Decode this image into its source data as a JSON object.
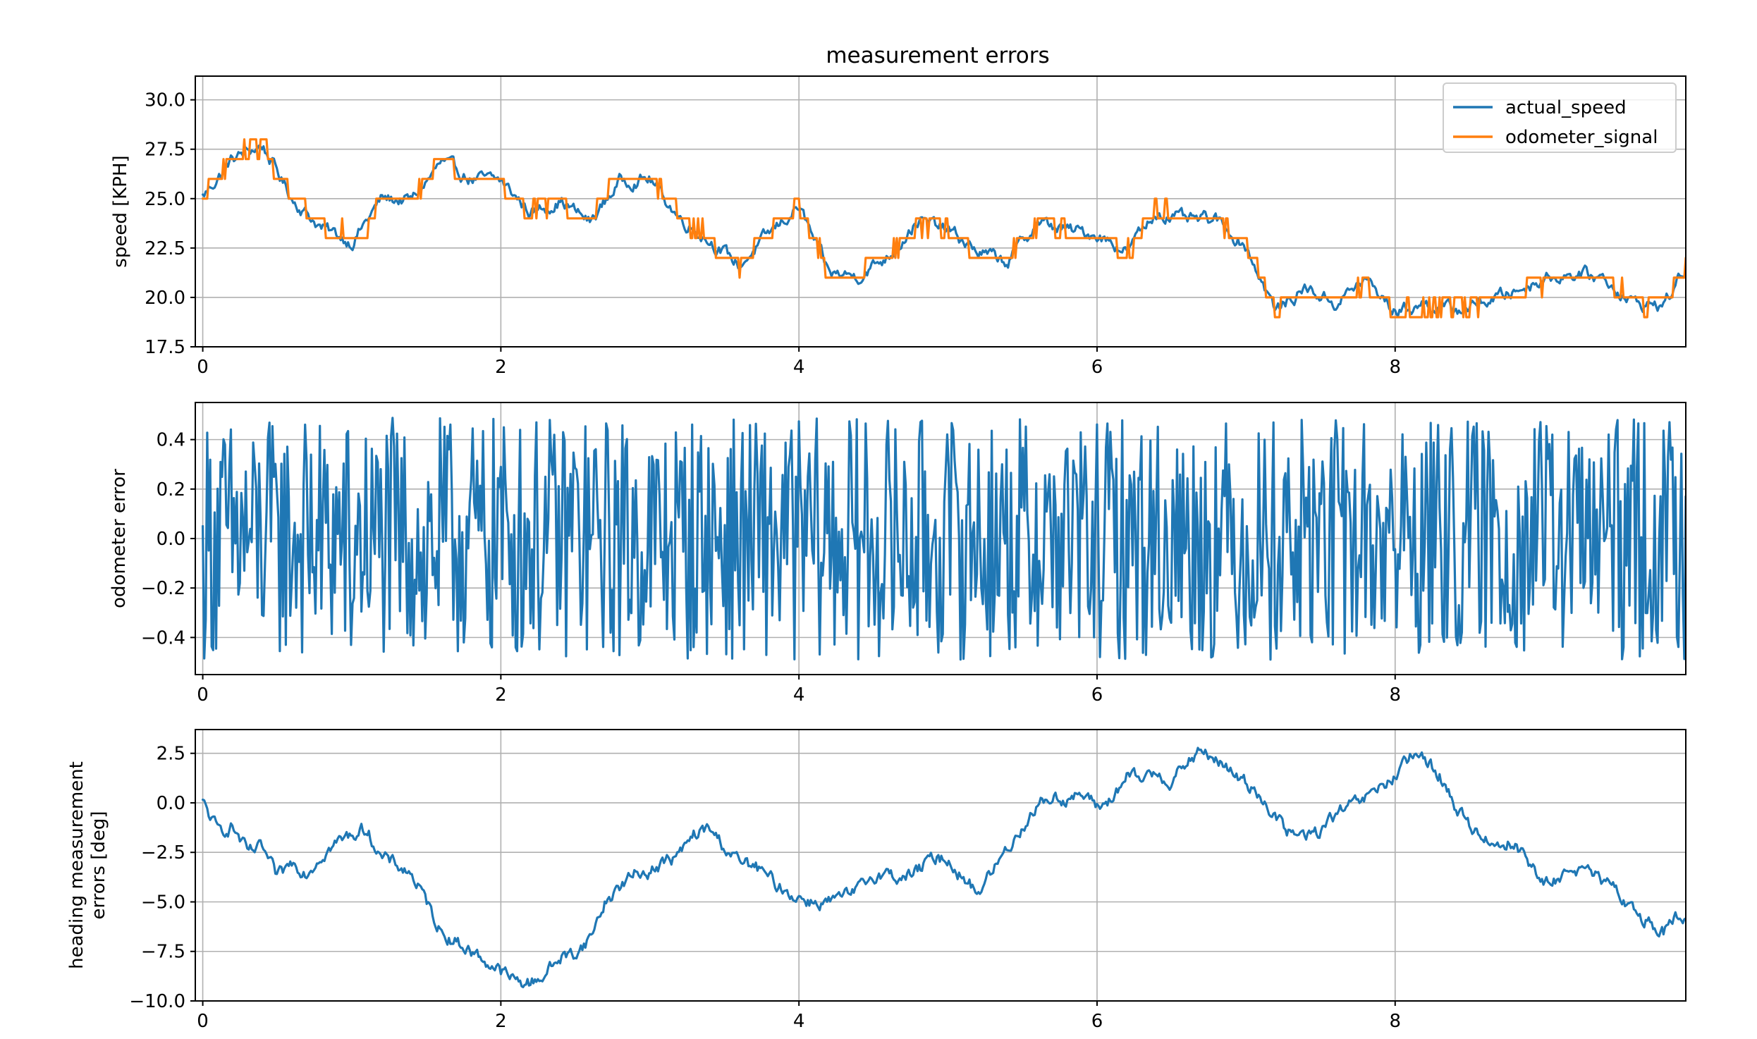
{
  "figure": {
    "title": "measurement errors"
  },
  "chart_data": [
    {
      "type": "line",
      "ylabel": "speed [KPH]",
      "xlim": [
        -0.05,
        9.95
      ],
      "ylim": [
        17.5,
        31.2
      ],
      "xticks": [
        0,
        2,
        4,
        6,
        8
      ],
      "yticks": [
        17.5,
        20.0,
        22.5,
        25.0,
        27.5,
        30.0
      ],
      "ytick_labels": [
        "17.5",
        "20.0",
        "22.5",
        "25.0",
        "27.5",
        "30.0"
      ],
      "grid": true,
      "legend": "top-right",
      "series": [
        {
          "name": "actual_speed",
          "color": "#1f77b4",
          "x": [
            0,
            0.2,
            0.4,
            0.6,
            0.8,
            1.0,
            1.2,
            1.4,
            1.6,
            1.8,
            2.0,
            2.2,
            2.4,
            2.6,
            2.8,
            3.0,
            3.2,
            3.4,
            3.6,
            3.8,
            4.0,
            4.2,
            4.4,
            4.6,
            4.8,
            5.0,
            5.2,
            5.4,
            5.6,
            5.8,
            6.0,
            6.2,
            6.4,
            6.6,
            6.8,
            7.0,
            7.2,
            7.4,
            7.6,
            7.8,
            8.0,
            8.2,
            8.4,
            8.6,
            8.8,
            9.0,
            9.2,
            9.4,
            9.6,
            9.8,
            9.95
          ],
          "y": [
            25.1,
            27.0,
            27.7,
            25.0,
            23.5,
            22.8,
            25.0,
            24.9,
            26.8,
            26.0,
            25.9,
            24.3,
            24.9,
            23.8,
            25.9,
            26.0,
            24.0,
            22.9,
            21.6,
            23.2,
            24.6,
            21.2,
            21.1,
            22.1,
            23.9,
            23.4,
            22.3,
            21.8,
            23.8,
            23.4,
            23.2,
            22.4,
            24.3,
            23.9,
            23.9,
            22.6,
            19.3,
            20.5,
            19.7,
            20.9,
            19.3,
            19.7,
            19.3,
            19.8,
            20.3,
            21.0,
            21.2,
            21.0,
            19.7,
            19.6,
            21.5
          ]
        },
        {
          "name": "odometer_signal",
          "color": "#ff7f0e",
          "x": [
            0,
            0.2,
            0.4,
            0.6,
            0.8,
            1.0,
            1.2,
            1.4,
            1.6,
            1.8,
            2.0,
            2.2,
            2.4,
            2.6,
            2.8,
            3.0,
            3.2,
            3.4,
            3.6,
            3.8,
            4.0,
            4.2,
            4.4,
            4.6,
            4.8,
            5.0,
            5.2,
            5.4,
            5.6,
            5.8,
            6.0,
            6.2,
            6.4,
            6.6,
            6.8,
            7.0,
            7.2,
            7.4,
            7.6,
            7.8,
            8.0,
            8.2,
            8.4,
            8.6,
            8.8,
            9.0,
            9.2,
            9.4,
            9.6,
            9.8,
            9.95
          ],
          "y": [
            25.0,
            27.0,
            28.0,
            25.0,
            23.0,
            23.0,
            25.0,
            25.0,
            27.0,
            26.0,
            26.0,
            24.0,
            25.0,
            24.0,
            26.0,
            26.0,
            24.0,
            23.0,
            22.0,
            23.0,
            25.0,
            21.0,
            21.0,
            22.0,
            24.0,
            23.0,
            22.0,
            22.0,
            24.0,
            23.0,
            23.0,
            22.0,
            24.0,
            24.0,
            24.0,
            23.0,
            19.0,
            21.0,
            20.0,
            21.0,
            19.0,
            19.0,
            19.0,
            20.0,
            20.0,
            21.0,
            21.0,
            21.0,
            20.0,
            20.0,
            21.0
          ]
        }
      ]
    },
    {
      "type": "line",
      "ylabel": "odometer error",
      "xlim": [
        -0.05,
        9.95
      ],
      "ylim": [
        -0.55,
        0.55
      ],
      "xticks": [
        0,
        2,
        4,
        6,
        8
      ],
      "yticks": [
        -0.4,
        -0.2,
        0.0,
        0.2,
        0.4
      ],
      "ytick_labels": [
        "−0.4",
        "−0.2",
        "0.0",
        "0.2",
        "0.4"
      ],
      "grid": true,
      "series": [
        {
          "color": "#1f77b4",
          "x": [
            0,
            0.1,
            0.2,
            0.3,
            0.4,
            0.5,
            0.6,
            0.7,
            0.8,
            0.9,
            1.0,
            1.1,
            1.2,
            1.3,
            1.4,
            1.5,
            1.6,
            1.7,
            1.8,
            1.9,
            2.0,
            2.1,
            2.2,
            2.3,
            2.4,
            2.5,
            2.6,
            2.7,
            2.8,
            2.9,
            3.0,
            3.1,
            3.2,
            3.3,
            3.4,
            3.5,
            3.6,
            3.7,
            3.8,
            3.9,
            4.0,
            4.1,
            4.2,
            4.3,
            4.4,
            4.5,
            4.6,
            4.7,
            4.8,
            4.9,
            5.0,
            5.1,
            5.2,
            5.3,
            5.4,
            5.5,
            5.6,
            5.7,
            5.8,
            5.9,
            6.0,
            6.1,
            6.2,
            6.3,
            6.4,
            6.5,
            6.6,
            6.7,
            6.8,
            6.9,
            7.0,
            7.1,
            7.2,
            7.3,
            7.4,
            7.5,
            7.6,
            7.7,
            7.8,
            7.9,
            8.0,
            8.1,
            8.2,
            8.3,
            8.4,
            8.5,
            8.6,
            8.7,
            8.8,
            8.9,
            9.0,
            9.1,
            9.2,
            9.3,
            9.4,
            9.5,
            9.6,
            9.7,
            9.8,
            9.9,
            9.95
          ],
          "y": [
            0.05,
            0.42,
            -0.46,
            0.48,
            -0.38,
            0.21,
            -0.31,
            0.45,
            -0.12,
            0.33,
            -0.47,
            0.16,
            0.49,
            -0.28,
            0.04,
            -0.44,
            0.37,
            -0.19,
            0.46,
            -0.35,
            0.27,
            -0.08,
            0.44,
            -0.49,
            0.12,
            0.38,
            -0.31,
            0.22,
            -0.42,
            0.47,
            -0.15,
            0.31,
            -0.46,
            0.09,
            0.48,
            -0.24,
            0.35,
            -0.39,
            0.18,
            -0.47,
            0.43,
            -0.06,
            0.29,
            -0.44,
            0.39,
            -0.21,
            0.47,
            -0.33,
            0.14,
            -0.48,
            0.36,
            -0.11,
            0.45,
            -0.29,
            0.23,
            -0.41,
            0.48,
            -0.17,
            0.32,
            -0.46,
            0.41,
            -0.27,
            0.08,
            0.49,
            -0.38,
            0.25,
            -0.43,
            0.37,
            -0.13,
            0.46,
            -0.34,
            0.19,
            -0.47,
            0.42,
            -0.22,
            0.31,
            -0.45,
            0.06,
            0.48,
            -0.36,
            0.28,
            -0.42,
            0.14,
            -0.49,
            0.39,
            -0.18,
            0.45,
            -0.31,
            0.21,
            -0.44,
            0.47,
            -0.09,
            0.33,
            -0.48,
            0.4,
            -0.26,
            0.17,
            -0.43,
            0.46,
            -0.34,
            0.17
          ]
        }
      ]
    },
    {
      "type": "line",
      "ylabel": "heading measurement\nerrors [deg]",
      "xlim": [
        -0.05,
        9.95
      ],
      "ylim": [
        -10.0,
        3.7
      ],
      "xticks": [
        0,
        2,
        4,
        6,
        8
      ],
      "yticks": [
        -10.0,
        -7.5,
        -5.0,
        -2.5,
        0.0,
        2.5
      ],
      "ytick_labels": [
        "−10.0",
        "−7.5",
        "−5.0",
        "−2.5",
        "0.0",
        "2.5"
      ],
      "grid": true,
      "series": [
        {
          "color": "#1f77b4",
          "x": [
            0,
            0.1,
            0.2,
            0.3,
            0.4,
            0.5,
            0.6,
            0.7,
            0.8,
            0.9,
            1.0,
            1.1,
            1.2,
            1.3,
            1.4,
            1.5,
            1.6,
            1.7,
            1.8,
            1.9,
            2.0,
            2.1,
            2.2,
            2.3,
            2.4,
            2.5,
            2.6,
            2.7,
            2.8,
            2.9,
            3.0,
            3.1,
            3.2,
            3.3,
            3.4,
            3.5,
            3.6,
            3.7,
            3.8,
            3.9,
            4.0,
            4.1,
            4.2,
            4.3,
            4.4,
            4.5,
            4.6,
            4.7,
            4.8,
            4.9,
            5.0,
            5.1,
            5.2,
            5.3,
            5.4,
            5.5,
            5.6,
            5.7,
            5.8,
            5.9,
            6.0,
            6.1,
            6.2,
            6.3,
            6.4,
            6.5,
            6.6,
            6.7,
            6.8,
            6.9,
            7.0,
            7.1,
            7.2,
            7.3,
            7.4,
            7.5,
            7.6,
            7.7,
            7.8,
            7.9,
            8.0,
            8.1,
            8.2,
            8.3,
            8.4,
            8.5,
            8.6,
            8.7,
            8.8,
            8.9,
            9.0,
            9.1,
            9.2,
            9.3,
            9.4,
            9.5,
            9.6,
            9.7,
            9.8,
            9.9,
            9.95
          ],
          "y": [
            0.0,
            -1.4,
            -1.2,
            -2.5,
            -2.3,
            -3.8,
            -3.0,
            -3.5,
            -2.6,
            -2.0,
            -1.6,
            -1.3,
            -2.8,
            -3.1,
            -3.6,
            -5.0,
            -6.5,
            -7.0,
            -7.5,
            -8.0,
            -8.5,
            -9.0,
            -9.1,
            -8.6,
            -7.8,
            -7.6,
            -6.8,
            -5.0,
            -4.2,
            -3.6,
            -3.4,
            -3.0,
            -2.6,
            -1.6,
            -1.3,
            -2.2,
            -3.0,
            -3.2,
            -3.8,
            -4.4,
            -4.8,
            -5.0,
            -5.0,
            -4.8,
            -4.4,
            -3.6,
            -3.6,
            -3.8,
            -3.4,
            -2.8,
            -2.8,
            -3.8,
            -4.5,
            -3.4,
            -2.3,
            -1.2,
            -0.1,
            0.3,
            0.2,
            0.4,
            -0.2,
            0.2,
            1.3,
            1.2,
            1.6,
            1.0,
            2.0,
            2.6,
            2.2,
            1.5,
            1.0,
            0.4,
            -0.8,
            -1.6,
            -1.7,
            -1.4,
            -0.6,
            -0.2,
            0.2,
            0.8,
            1.3,
            2.2,
            2.3,
            1.4,
            -0.2,
            -1.1,
            -1.8,
            -2.1,
            -2.0,
            -3.0,
            -4.2,
            -3.8,
            -3.2,
            -3.6,
            -4.0,
            -4.6,
            -5.4,
            -6.0,
            -6.5,
            -5.8,
            -6.1
          ]
        }
      ]
    }
  ]
}
